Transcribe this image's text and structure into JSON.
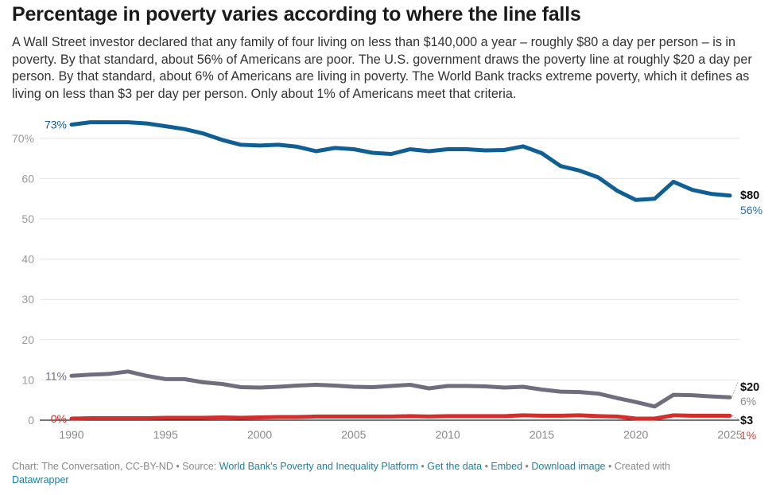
{
  "header": {
    "title": "Percentage in poverty varies according to where the line falls",
    "description": "A Wall Street investor declared that any family of four living on less than $140,000 a year – roughly $80 a day per person – is in poverty. By that standard, about 56% of Americans are poor. The U.S. government draws the poverty line at roughly $20 a day per person. By that standard, about 6% of Americans are living in poverty. The World Bank tracks extreme poverty, which it defines as living on less than $3 per day per person. Only about 1% of Americans meet that criteria."
  },
  "chart_data": {
    "type": "line",
    "title": "Percentage in poverty varies according to where the line falls",
    "xlabel": "",
    "ylabel": "",
    "x": [
      1990,
      1991,
      1992,
      1993,
      1994,
      1995,
      1996,
      1997,
      1998,
      1999,
      2000,
      2001,
      2002,
      2003,
      2004,
      2005,
      2006,
      2007,
      2008,
      2009,
      2010,
      2011,
      2012,
      2013,
      2014,
      2015,
      2016,
      2017,
      2018,
      2019,
      2020,
      2021,
      2022,
      2023,
      2024,
      2025
    ],
    "xlim": [
      1990,
      2025
    ],
    "ylim": [
      0,
      73
    ],
    "x_ticks": [
      "1990",
      "1995",
      "2000",
      "2005",
      "2010",
      "2015",
      "2020",
      "2025"
    ],
    "x_tick_values": [
      1990,
      1995,
      2000,
      2005,
      2010,
      2015,
      2020,
      2025
    ],
    "y_ticks": [
      "0",
      "10",
      "20",
      "30",
      "40",
      "50",
      "60",
      "70%"
    ],
    "y_tick_values": [
      0,
      10,
      20,
      30,
      40,
      50,
      60,
      70
    ],
    "grid": true,
    "legend": "direct labels at line ends (right)",
    "series": [
      {
        "name": "$80",
        "color": "#0f5e94",
        "start_label": "73%",
        "end_label": "56%",
        "values": [
          73.4,
          74.0,
          74.0,
          74.0,
          73.7,
          73.0,
          72.3,
          71.2,
          69.6,
          68.4,
          68.2,
          68.4,
          67.9,
          66.8,
          67.6,
          67.3,
          66.4,
          66.1,
          67.3,
          66.8,
          67.3,
          67.3,
          67.0,
          67.1,
          68.0,
          66.3,
          63.1,
          62.0,
          60.3,
          57.0,
          54.7,
          55.0,
          59.2,
          57.2,
          56.2,
          55.8
        ]
      },
      {
        "name": "$20",
        "color": "#6f6e7f",
        "start_label": "11%",
        "end_label": "6%",
        "values": [
          11.0,
          11.3,
          11.5,
          12.1,
          11.0,
          10.2,
          10.2,
          9.4,
          9.0,
          8.2,
          8.1,
          8.3,
          8.6,
          8.8,
          8.6,
          8.3,
          8.2,
          8.5,
          8.8,
          7.9,
          8.5,
          8.5,
          8.4,
          8.1,
          8.3,
          7.6,
          7.1,
          7.0,
          6.6,
          5.5,
          4.5,
          3.4,
          6.3,
          6.2,
          5.9,
          5.7
        ]
      },
      {
        "name": "$3",
        "color": "#d22f2b",
        "start_label": "0%",
        "end_label": "1%",
        "values": [
          0.4,
          0.5,
          0.5,
          0.5,
          0.5,
          0.6,
          0.6,
          0.6,
          0.7,
          0.6,
          0.7,
          0.8,
          0.8,
          0.9,
          0.9,
          0.9,
          0.9,
          0.9,
          1.0,
          0.9,
          1.0,
          1.0,
          1.0,
          1.0,
          1.2,
          1.1,
          1.1,
          1.2,
          1.0,
          0.9,
          0.4,
          0.4,
          1.2,
          1.1,
          1.1,
          1.1
        ]
      }
    ]
  },
  "footer": {
    "chart_credit": "Chart: The Conversation, CC-BY-ND",
    "separator": " • ",
    "source_prefix": "Source: ",
    "source_link": "World Bank's Poverty and Inequality Platform",
    "get_data": "Get the data",
    "embed": "Embed",
    "download": "Download image",
    "created_with": "Created with",
    "datawrapper": "Datawrapper"
  }
}
